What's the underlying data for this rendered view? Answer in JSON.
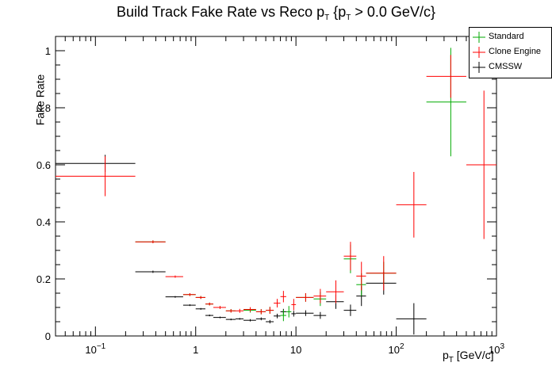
{
  "title": {
    "main": "Build Track Fake Rate vs Reco p",
    "sub1": "T",
    "mid": " {p",
    "sub2": "T",
    "tail": " > 0.0 GeV/c}"
  },
  "axes": {
    "ylabel": "Fake Rate",
    "xlabel_main": "p",
    "xlabel_sub": "T",
    "xlabel_tail": " [GeV/c]"
  },
  "colors": {
    "standard": "#00aa00",
    "clone_engine": "#ff0000",
    "cmssw": "#000000"
  },
  "chart_data": {
    "type": "scatter",
    "x_scale": "log",
    "xlim": [
      0.04,
      1000
    ],
    "ylim": [
      0,
      1.05
    ],
    "grid": false,
    "legend_position": "top-right",
    "y_ticks": [
      "0",
      "0.2",
      "0.4",
      "0.6",
      "0.8",
      "1"
    ],
    "x_ticks": [
      {
        "value": 0.1,
        "base": "10",
        "exp": "−1"
      },
      {
        "value": 1,
        "base": "1",
        "exp": ""
      },
      {
        "value": 10,
        "base": "10",
        "exp": ""
      },
      {
        "value": 100,
        "base": "10",
        "exp": "2"
      },
      {
        "value": 1000,
        "base": "10",
        "exp": "3"
      }
    ],
    "series": [
      {
        "name": "Standard",
        "color_key": "standard",
        "points": [
          {
            "x": 0.375,
            "xlo": 0.25,
            "xhi": 0.5,
            "y": 0.33,
            "err": 0.005
          },
          {
            "x": 0.875,
            "xlo": 0.75,
            "xhi": 1.0,
            "y": 0.145,
            "err": 0.005
          },
          {
            "x": 1.125,
            "xlo": 1.0,
            "xhi": 1.25,
            "y": 0.135,
            "err": 0.005
          },
          {
            "x": 1.375,
            "xlo": 1.25,
            "xhi": 1.5,
            "y": 0.112,
            "err": 0.005
          },
          {
            "x": 1.75,
            "xlo": 1.5,
            "xhi": 2.0,
            "y": 0.1,
            "err": 0.005
          },
          {
            "x": 2.25,
            "xlo": 2.0,
            "xhi": 2.5,
            "y": 0.088,
            "err": 0.006
          },
          {
            "x": 3.5,
            "xlo": 3.0,
            "xhi": 4.0,
            "y": 0.09,
            "err": 0.008
          },
          {
            "x": 4.5,
            "xlo": 4.0,
            "xhi": 5.0,
            "y": 0.085,
            "err": 0.009
          },
          {
            "x": 5.5,
            "xlo": 5.0,
            "xhi": 6.0,
            "y": 0.09,
            "err": 0.012
          },
          {
            "x": 7.5,
            "xlo": 7.0,
            "xhi": 8.0,
            "y": 0.072,
            "err": 0.02
          },
          {
            "x": 8.5,
            "xlo": 8.0,
            "xhi": 9.0,
            "y": 0.085,
            "err": 0.02
          },
          {
            "x": 12.5,
            "xlo": 10.0,
            "xhi": 15.0,
            "y": 0.135,
            "err": 0.015
          },
          {
            "x": 17.5,
            "xlo": 15.0,
            "xhi": 20.0,
            "y": 0.13,
            "err": 0.025
          },
          {
            "x": 35,
            "xlo": 30,
            "xhi": 40,
            "y": 0.27,
            "err": 0.05
          },
          {
            "x": 45,
            "xlo": 40,
            "xhi": 50,
            "y": 0.18,
            "err": 0.04
          },
          {
            "x": 75,
            "xlo": 50,
            "xhi": 100,
            "y": 0.22,
            "err": 0.04
          },
          {
            "x": 350,
            "xlo": 200,
            "xhi": 500,
            "y": 0.82,
            "err": 0.19
          }
        ]
      },
      {
        "name": "Clone Engine",
        "color_key": "clone_engine",
        "points": [
          {
            "x": 0.125,
            "xlo": 0.0,
            "xhi": 0.25,
            "y": 0.56,
            "err": 0.07
          },
          {
            "x": 0.375,
            "xlo": 0.25,
            "xhi": 0.5,
            "y": 0.33,
            "err": 0.005
          },
          {
            "x": 0.625,
            "xlo": 0.5,
            "xhi": 0.75,
            "y": 0.208,
            "err": 0.004
          },
          {
            "x": 0.875,
            "xlo": 0.75,
            "xhi": 1.0,
            "y": 0.145,
            "err": 0.005
          },
          {
            "x": 1.125,
            "xlo": 1.0,
            "xhi": 1.25,
            "y": 0.135,
            "err": 0.005
          },
          {
            "x": 1.375,
            "xlo": 1.25,
            "xhi": 1.5,
            "y": 0.112,
            "err": 0.005
          },
          {
            "x": 1.75,
            "xlo": 1.5,
            "xhi": 2.0,
            "y": 0.1,
            "err": 0.005
          },
          {
            "x": 2.25,
            "xlo": 2.0,
            "xhi": 2.5,
            "y": 0.088,
            "err": 0.006
          },
          {
            "x": 2.75,
            "xlo": 2.5,
            "xhi": 3.0,
            "y": 0.088,
            "err": 0.007
          },
          {
            "x": 3.5,
            "xlo": 3.0,
            "xhi": 4.0,
            "y": 0.093,
            "err": 0.008
          },
          {
            "x": 4.5,
            "xlo": 4.0,
            "xhi": 5.0,
            "y": 0.085,
            "err": 0.009
          },
          {
            "x": 5.5,
            "xlo": 5.0,
            "xhi": 6.0,
            "y": 0.09,
            "err": 0.012
          },
          {
            "x": 6.5,
            "xlo": 6.0,
            "xhi": 7.0,
            "y": 0.115,
            "err": 0.015
          },
          {
            "x": 7.5,
            "xlo": 7.0,
            "xhi": 8.0,
            "y": 0.138,
            "err": 0.02
          },
          {
            "x": 9.5,
            "xlo": 9.0,
            "xhi": 10.0,
            "y": 0.11,
            "err": 0.02
          },
          {
            "x": 12.5,
            "xlo": 10.0,
            "xhi": 15.0,
            "y": 0.135,
            "err": 0.015
          },
          {
            "x": 17.5,
            "xlo": 15.0,
            "xhi": 20.0,
            "y": 0.14,
            "err": 0.025
          },
          {
            "x": 25,
            "xlo": 20,
            "xhi": 30,
            "y": 0.155,
            "err": 0.04
          },
          {
            "x": 35,
            "xlo": 30,
            "xhi": 40,
            "y": 0.28,
            "err": 0.05
          },
          {
            "x": 45,
            "xlo": 40,
            "xhi": 50,
            "y": 0.21,
            "err": 0.05
          },
          {
            "x": 75,
            "xlo": 50,
            "xhi": 100,
            "y": 0.22,
            "err": 0.06
          },
          {
            "x": 150,
            "xlo": 100,
            "xhi": 200,
            "y": 0.46,
            "err": 0.115
          },
          {
            "x": 350,
            "xlo": 200,
            "xhi": 500,
            "y": 0.91,
            "err": 0.075
          },
          {
            "x": 750,
            "xlo": 500,
            "xhi": 1000,
            "y": 0.6,
            "err": 0.26
          }
        ]
      },
      {
        "name": "CMSSW",
        "color_key": "cmssw",
        "points": [
          {
            "x": 0.125,
            "xlo": 0.0,
            "xhi": 0.25,
            "y": 0.605,
            "err": 0.03
          },
          {
            "x": 0.375,
            "xlo": 0.25,
            "xhi": 0.5,
            "y": 0.225,
            "err": 0.004
          },
          {
            "x": 0.625,
            "xlo": 0.5,
            "xhi": 0.75,
            "y": 0.137,
            "err": 0.003
          },
          {
            "x": 0.875,
            "xlo": 0.75,
            "xhi": 1.0,
            "y": 0.108,
            "err": 0.003
          },
          {
            "x": 1.125,
            "xlo": 1.0,
            "xhi": 1.25,
            "y": 0.095,
            "err": 0.003
          },
          {
            "x": 1.375,
            "xlo": 1.25,
            "xhi": 1.5,
            "y": 0.072,
            "err": 0.003
          },
          {
            "x": 1.75,
            "xlo": 1.5,
            "xhi": 2.0,
            "y": 0.065,
            "err": 0.003
          },
          {
            "x": 2.25,
            "xlo": 2.0,
            "xhi": 2.5,
            "y": 0.058,
            "err": 0.003
          },
          {
            "x": 2.75,
            "xlo": 2.5,
            "xhi": 3.0,
            "y": 0.06,
            "err": 0.003
          },
          {
            "x": 3.5,
            "xlo": 3.0,
            "xhi": 4.0,
            "y": 0.055,
            "err": 0.004
          },
          {
            "x": 4.5,
            "xlo": 4.0,
            "xhi": 5.0,
            "y": 0.06,
            "err": 0.005
          },
          {
            "x": 5.5,
            "xlo": 5.0,
            "xhi": 6.0,
            "y": 0.05,
            "err": 0.006
          },
          {
            "x": 6.5,
            "xlo": 6.0,
            "xhi": 7.0,
            "y": 0.07,
            "err": 0.008
          },
          {
            "x": 7.5,
            "xlo": 7.0,
            "xhi": 8.0,
            "y": 0.085,
            "err": 0.01
          },
          {
            "x": 9.5,
            "xlo": 9.0,
            "xhi": 10.0,
            "y": 0.078,
            "err": 0.01
          },
          {
            "x": 12.5,
            "xlo": 10.0,
            "xhi": 15.0,
            "y": 0.08,
            "err": 0.01
          },
          {
            "x": 17.5,
            "xlo": 15.0,
            "xhi": 20.0,
            "y": 0.072,
            "err": 0.012
          },
          {
            "x": 25,
            "xlo": 20,
            "xhi": 30,
            "y": 0.12,
            "err": 0.025
          },
          {
            "x": 35,
            "xlo": 30,
            "xhi": 40,
            "y": 0.09,
            "err": 0.02
          },
          {
            "x": 45,
            "xlo": 40,
            "xhi": 50,
            "y": 0.14,
            "err": 0.035
          },
          {
            "x": 75,
            "xlo": 50,
            "xhi": 100,
            "y": 0.185,
            "err": 0.04
          },
          {
            "x": 150,
            "xlo": 100,
            "xhi": 200,
            "y": 0.06,
            "err": 0.055
          }
        ]
      }
    ]
  }
}
